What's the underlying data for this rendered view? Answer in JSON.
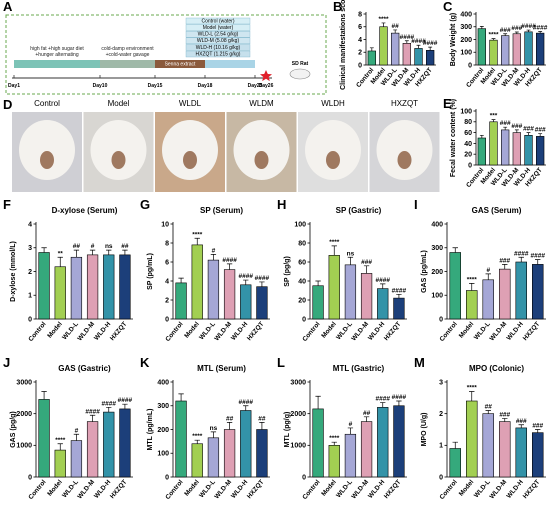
{
  "timeline": {
    "panel": "A",
    "groups": [
      "Control (water)",
      "Model (water)",
      "WLD-L (2.54 g/kg)",
      "WLD-M (5.08 g/kg)",
      "WLD-H (10.16 g/kg)",
      "HXZQT (1.215 g/kg)"
    ],
    "phases": [
      [
        "high fat +high sugar diet",
        "+hunger alternating"
      ],
      [
        "cold-damp environment",
        "+cold-water gavage"
      ],
      [
        "Senna extract"
      ]
    ],
    "days": [
      "Day1",
      "Day10",
      "Day15",
      "Day18",
      "Day25",
      "Day26"
    ],
    "animal": "SD Rat"
  },
  "photos": {
    "panel": "D",
    "labels": [
      "Control",
      "Model",
      "WLDL",
      "WLDM",
      "WLDH",
      "HXZQT"
    ]
  },
  "chart_data": [
    {
      "type": "bar",
      "panel": "B",
      "ylabel": "Clinical manifestations scores",
      "categories": [
        "Control",
        "Model",
        "WLD-L",
        "WLD-M",
        "WLD-H",
        "HXZQT"
      ],
      "values": [
        2.2,
        6.0,
        5.0,
        3.4,
        2.6,
        2.3
      ],
      "errors": [
        0.5,
        0.6,
        0.5,
        0.4,
        0.5,
        0.5
      ],
      "annotations": [
        null,
        "****",
        "##",
        "####",
        "####",
        "####"
      ],
      "colors": [
        "#35a97c",
        "#a2cf52",
        "#a5a7d6",
        "#dea0b4",
        "#3393a8",
        "#1c3f7a"
      ],
      "ylim": [
        0,
        8
      ],
      "yticks": [
        0,
        2,
        4,
        6,
        8
      ]
    },
    {
      "type": "bar",
      "panel": "C",
      "ylabel": "Body Weight (g)",
      "categories": [
        "Control",
        "Model",
        "WLD-L",
        "WLD-M",
        "WLD-H",
        "HXZQT"
      ],
      "values": [
        285,
        195,
        230,
        245,
        260,
        250
      ],
      "errors": [
        18,
        12,
        15,
        14,
        14,
        13
      ],
      "annotations": [
        null,
        "****",
        "###",
        "###",
        "####",
        "####"
      ],
      "colors": [
        "#35a97c",
        "#a2cf52",
        "#a5a7d6",
        "#dea0b4",
        "#3393a8",
        "#1c3f7a"
      ],
      "ylim": [
        0,
        400
      ],
      "yticks": [
        0,
        100,
        200,
        300,
        400
      ]
    },
    {
      "type": "bar",
      "panel": "E",
      "ylabel": "Fecal water content (%)",
      "categories": [
        "Control",
        "Model",
        "WLD-L",
        "WLD-M",
        "WLD-H",
        "HXZQT"
      ],
      "values": [
        50,
        80,
        65,
        60,
        55,
        53
      ],
      "errors": [
        5,
        4,
        5,
        5,
        5,
        5
      ],
      "annotations": [
        null,
        "***",
        "###",
        "###",
        "###",
        "###"
      ],
      "colors": [
        "#35a97c",
        "#a2cf52",
        "#a5a7d6",
        "#dea0b4",
        "#3393a8",
        "#1c3f7a"
      ],
      "ylim": [
        0,
        100
      ],
      "yticks": [
        0,
        20,
        40,
        60,
        80,
        100
      ]
    },
    {
      "type": "bar",
      "panel": "F",
      "title": "D-xylose (Serum)",
      "ylabel": "D-xylose (mmol/L)",
      "categories": [
        "Control",
        "Model",
        "WLD-L",
        "WLD-M",
        "WLD-H",
        "HXZQT"
      ],
      "values": [
        2.8,
        2.2,
        2.6,
        2.7,
        2.7,
        2.7
      ],
      "errors": [
        0.2,
        0.4,
        0.3,
        0.2,
        0.2,
        0.2
      ],
      "annotations": [
        null,
        "**",
        "##",
        "#",
        "ns",
        "##"
      ],
      "colors": [
        "#35a97c",
        "#a2cf52",
        "#a5a7d6",
        "#dea0b4",
        "#3393a8",
        "#1c3f7a"
      ],
      "ylim": [
        0,
        4
      ],
      "yticks": [
        0,
        1,
        2,
        3,
        4
      ]
    },
    {
      "type": "bar",
      "panel": "G",
      "title": "SP (Serum)",
      "ylabel": "SP (pg/mL)",
      "categories": [
        "Control",
        "Model",
        "WLD-L",
        "WLD-M",
        "WLD-H",
        "HXZQT"
      ],
      "values": [
        3.8,
        7.8,
        6.2,
        5.2,
        3.6,
        3.4
      ],
      "errors": [
        0.5,
        0.7,
        0.6,
        0.6,
        0.5,
        0.5
      ],
      "annotations": [
        null,
        "****",
        "#",
        "####",
        "####",
        "####"
      ],
      "colors": [
        "#35a97c",
        "#a2cf52",
        "#a5a7d6",
        "#dea0b4",
        "#3393a8",
        "#1c3f7a"
      ],
      "ylim": [
        0,
        10
      ],
      "yticks": [
        0,
        2,
        4,
        6,
        8,
        10
      ]
    },
    {
      "type": "bar",
      "panel": "H",
      "title": "SP (Gastric)",
      "ylabel": "SP (pg/g)",
      "categories": [
        "Control",
        "Model",
        "WLD-L",
        "WLD-M",
        "WLD-H",
        "HXZQT"
      ],
      "values": [
        35,
        67,
        57,
        48,
        32,
        22
      ],
      "errors": [
        5,
        10,
        8,
        8,
        5,
        4
      ],
      "annotations": [
        null,
        "****",
        "ns",
        "###",
        "####",
        "####"
      ],
      "colors": [
        "#35a97c",
        "#a2cf52",
        "#a5a7d6",
        "#dea0b4",
        "#3393a8",
        "#1c3f7a"
      ],
      "ylim": [
        0,
        100
      ],
      "yticks": [
        0,
        20,
        40,
        60,
        80,
        100
      ]
    },
    {
      "type": "bar",
      "panel": "I",
      "title": "GAS (Serum)",
      "ylabel": "GAS (pg/mL)",
      "categories": [
        "Control",
        "Model",
        "WLD-L",
        "WLD-M",
        "WLD-H",
        "HXZQT"
      ],
      "values": [
        280,
        120,
        165,
        210,
        240,
        230
      ],
      "errors": [
        20,
        30,
        25,
        20,
        20,
        20
      ],
      "annotations": [
        null,
        "****",
        "#",
        "###",
        "####",
        "####"
      ],
      "colors": [
        "#35a97c",
        "#a2cf52",
        "#a5a7d6",
        "#dea0b4",
        "#3393a8",
        "#1c3f7a"
      ],
      "ylim": [
        0,
        400
      ],
      "yticks": [
        0,
        100,
        200,
        300,
        400
      ]
    },
    {
      "type": "bar",
      "panel": "J",
      "title": "GAS (Gastric)",
      "ylabel": "GAS (pg/g)",
      "categories": [
        "Control",
        "Model",
        "WLD-L",
        "WLD-M",
        "WLD-H",
        "HXZQT"
      ],
      "values": [
        2450,
        850,
        1150,
        1750,
        2050,
        2150
      ],
      "errors": [
        250,
        200,
        200,
        200,
        150,
        150
      ],
      "annotations": [
        null,
        "****",
        "#",
        "####",
        "####",
        "####"
      ],
      "colors": [
        "#35a97c",
        "#a2cf52",
        "#a5a7d6",
        "#dea0b4",
        "#3393a8",
        "#1c3f7a"
      ],
      "ylim": [
        0,
        3000
      ],
      "yticks": [
        0,
        1000,
        2000,
        3000
      ]
    },
    {
      "type": "bar",
      "panel": "K",
      "title": "MTL (Serum)",
      "ylabel": "MTL (pg/mL)",
      "categories": [
        "Control",
        "Model",
        "WLD-L",
        "WLD-M",
        "WLD-H",
        "HXZQT"
      ],
      "values": [
        320,
        140,
        165,
        200,
        280,
        200
      ],
      "errors": [
        30,
        15,
        25,
        30,
        20,
        30
      ],
      "annotations": [
        null,
        "****",
        "ns",
        "##",
        "####",
        "##"
      ],
      "colors": [
        "#35a97c",
        "#a2cf52",
        "#a5a7d6",
        "#dea0b4",
        "#3393a8",
        "#1c3f7a"
      ],
      "ylim": [
        0,
        400
      ],
      "yticks": [
        0,
        100,
        200,
        300,
        400
      ]
    },
    {
      "type": "bar",
      "panel": "L",
      "title": "MTL (Gastric)",
      "ylabel": "MTL (pg/g)",
      "categories": [
        "Control",
        "Model",
        "WLD-L",
        "WLD-M",
        "WLD-H",
        "HXZQT"
      ],
      "values": [
        2150,
        1000,
        1350,
        1750,
        2200,
        2250
      ],
      "errors": [
        400,
        100,
        200,
        150,
        150,
        150
      ],
      "annotations": [
        null,
        "****",
        "#",
        "##",
        "####",
        "####"
      ],
      "colors": [
        "#35a97c",
        "#a2cf52",
        "#a5a7d6",
        "#dea0b4",
        "#3393a8",
        "#1c3f7a"
      ],
      "ylim": [
        0,
        3000
      ],
      "yticks": [
        0,
        1000,
        2000,
        3000
      ]
    },
    {
      "type": "bar",
      "panel": "M",
      "title": "MPO (Colonic)",
      "ylabel": "MPO (U/g)",
      "categories": [
        "Control",
        "Model",
        "WLD-L",
        "WLD-M",
        "WLD-H",
        "HXZQT"
      ],
      "values": [
        0.9,
        2.4,
        2.0,
        1.75,
        1.55,
        1.4
      ],
      "errors": [
        0.2,
        0.3,
        0.1,
        0.1,
        0.1,
        0.1
      ],
      "annotations": [
        null,
        "****",
        "##",
        "###",
        "###",
        "###"
      ],
      "colors": [
        "#35a97c",
        "#a2cf52",
        "#a5a7d6",
        "#dea0b4",
        "#3393a8",
        "#1c3f7a"
      ],
      "ylim": [
        0,
        3
      ],
      "yticks": [
        0,
        1,
        2,
        3
      ]
    }
  ]
}
